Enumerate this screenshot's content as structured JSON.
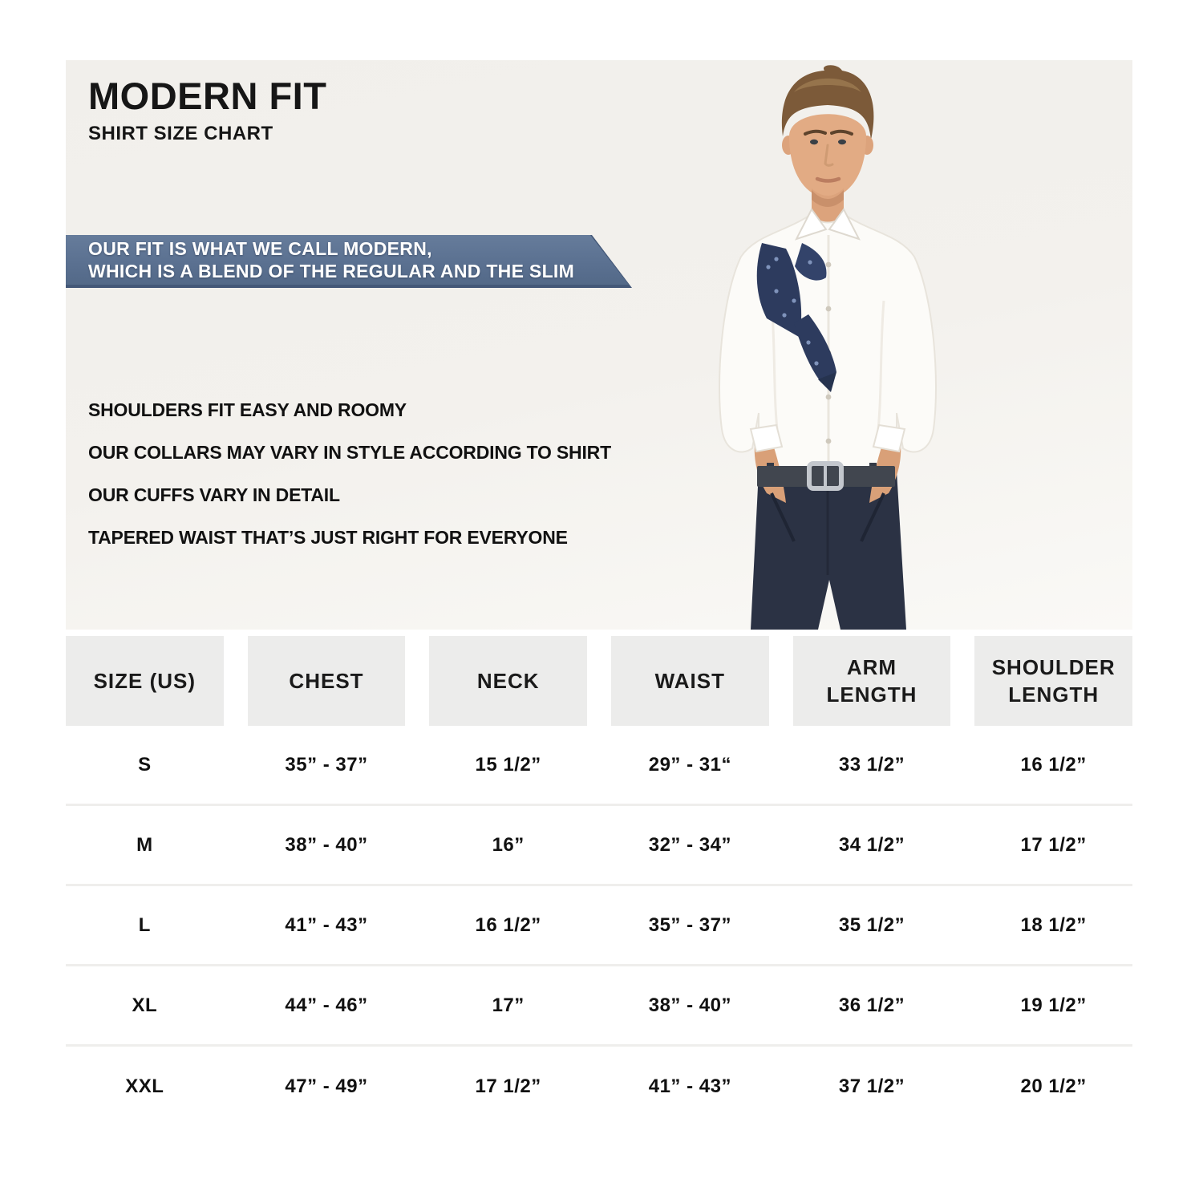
{
  "header": {
    "title": "MODERN FIT",
    "subtitle": "SHIRT SIZE CHART"
  },
  "banner": {
    "line1": "OUR FIT IS WHAT WE CALL MODERN,",
    "line2": "WHICH IS A BLEND OF THE REGULAR AND THE SLIM"
  },
  "fit_points": [
    "SHOULDERS FIT EASY AND ROOMY",
    "OUR COLLARS MAY VARY IN STYLE ACCORDING TO SHIRT",
    "OUR CUFFS VARY IN DETAIL",
    "TAPERED WAIST THAT’S JUST RIGHT FOR EVERYONE"
  ],
  "photo": {
    "alt": "man wearing white modern fit dress shirt with navy tie draped over shoulder and navy trousers, hands in pockets"
  },
  "size_chart": {
    "columns": [
      {
        "lines": [
          "SIZE (US)"
        ]
      },
      {
        "lines": [
          "CHEST"
        ]
      },
      {
        "lines": [
          "NECK"
        ]
      },
      {
        "lines": [
          "WAIST"
        ]
      },
      {
        "lines": [
          "ARM",
          "LENGTH"
        ]
      },
      {
        "lines": [
          "SHOULDER",
          "LENGTH"
        ]
      }
    ],
    "rows": [
      [
        "S",
        "35” - 37”",
        "15 1/2”",
        "29” - 31“",
        "33 1/2”",
        "16 1/2”"
      ],
      [
        "M",
        "38” - 40”",
        "16”",
        "32” - 34”",
        "34 1/2”",
        "17 1/2”"
      ],
      [
        "L",
        "41” - 43”",
        "16 1/2”",
        "35” - 37”",
        "35 1/2”",
        "18 1/2”"
      ],
      [
        "XL",
        "44” - 46”",
        "17”",
        "38” - 40”",
        "36 1/2”",
        "19 1/2”"
      ],
      [
        "XXL",
        "47” - 49”",
        "17 1/2”",
        "41” - 43”",
        "37 1/2”",
        "20 1/2”"
      ]
    ]
  },
  "colors": {
    "banner_fill": "#5e7390",
    "banner_edge": "#445878",
    "header_cell_bg": "#ececeb",
    "hero_bg": "#f2f0ec",
    "banner_text": "#ffffff",
    "text": "#161616",
    "pants_navy": "#2b3244",
    "tie_navy": "#2d3b5e"
  }
}
